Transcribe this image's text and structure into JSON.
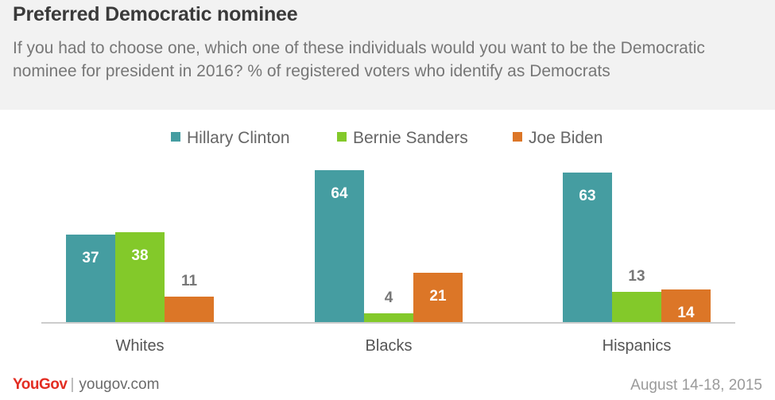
{
  "header": {
    "title": "Preferred Democratic nominee",
    "subtitle": "If you had to choose one, which one of these individuals would you want to be the Democratic nominee for president in 2016? % of registered voters who identify as Democrats"
  },
  "chart_data": {
    "type": "bar",
    "categories": [
      "Whites",
      "Blacks",
      "Hispanics"
    ],
    "series": [
      {
        "name": "Hillary Clinton",
        "values": [
          37,
          64,
          63
        ],
        "color": "#459da1"
      },
      {
        "name": "Bernie Sanders",
        "values": [
          38,
          4,
          13
        ],
        "color": "#83c92a"
      },
      {
        "name": "Joe Biden",
        "values": [
          11,
          21,
          14
        ],
        "color": "#dc7627"
      }
    ],
    "data_labels": [
      [
        "37",
        "64",
        "63"
      ],
      [
        "38",
        "4",
        "13"
      ],
      [
        "11",
        "21",
        "14"
      ]
    ],
    "title": "Preferred Democratic nominee",
    "xlabel": "",
    "ylabel": "",
    "ylim": [
      0,
      100
    ],
    "grid": false,
    "legend": "top-center"
  },
  "footer": {
    "brand_you": "You",
    "brand_gov": "Gov",
    "website": "yougov.com",
    "date": "August 14-18, 2015"
  }
}
